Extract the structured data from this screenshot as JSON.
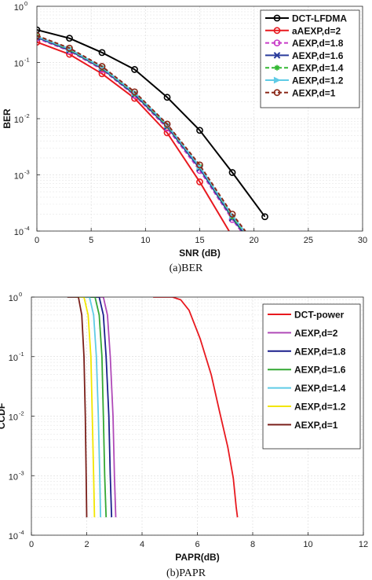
{
  "chart_data": [
    {
      "type": "line",
      "caption": "(a)BER",
      "xlabel": "SNR (dB)",
      "ylabel": "BER",
      "xlim": [
        0,
        30
      ],
      "ylim": [
        0.0001,
        1
      ],
      "yscale": "log",
      "grid": true,
      "legend_position": "top-right",
      "x_ticks": [
        "0",
        "5",
        "10",
        "15",
        "20",
        "25",
        "30"
      ],
      "y_ticks": [
        {
          "base": "10",
          "exp": "0"
        },
        {
          "base": "10",
          "exp": "-1"
        },
        {
          "base": "10",
          "exp": "-2"
        },
        {
          "base": "10",
          "exp": "-3"
        },
        {
          "base": "10",
          "exp": "-4"
        }
      ],
      "series": [
        {
          "name": "DCT-LFDMA",
          "color": "#000000",
          "marker": "circle",
          "dash": "solid",
          "x": [
            0,
            3,
            6,
            9,
            12,
            15,
            18,
            21
          ],
          "y": [
            0.38,
            0.27,
            0.15,
            0.075,
            0.024,
            0.0062,
            0.0011,
            0.00018
          ]
        },
        {
          "name": "aAEXP,d=2",
          "color": "#e8191f",
          "marker": "circle",
          "dash": "solid",
          "x": [
            0,
            3,
            6,
            9,
            12,
            15,
            17.7
          ],
          "y": [
            0.23,
            0.14,
            0.063,
            0.023,
            0.0056,
            0.00075,
            0.0001
          ]
        },
        {
          "name": "AEXP,d=1.8",
          "color": "#c83cc8",
          "marker": "circle",
          "dash": "dashed",
          "x": [
            0,
            3,
            6,
            9,
            12,
            15,
            18,
            18.8
          ],
          "y": [
            0.27,
            0.16,
            0.075,
            0.026,
            0.0068,
            0.0012,
            0.00016,
            0.0001
          ]
        },
        {
          "name": "AEXP,d=1.6",
          "color": "#2a3c9c",
          "marker": "x",
          "dash": "solid",
          "x": [
            0,
            3,
            6,
            9,
            12,
            15,
            18,
            18.9
          ],
          "y": [
            0.28,
            0.165,
            0.078,
            0.027,
            0.0072,
            0.0013,
            0.00017,
            0.0001
          ]
        },
        {
          "name": "AEXP,d=1.4",
          "color": "#33b833",
          "marker": "star",
          "dash": "dashed",
          "x": [
            0,
            3,
            6,
            9,
            12,
            15,
            18,
            19
          ],
          "y": [
            0.29,
            0.17,
            0.08,
            0.028,
            0.0075,
            0.0014,
            0.00018,
            0.0001
          ]
        },
        {
          "name": "AEXP,d=1.2",
          "color": "#5fcbe6",
          "marker": "triangle-right",
          "dash": "solid",
          "x": [
            0,
            3,
            6,
            9,
            12,
            15,
            18,
            19.1
          ],
          "y": [
            0.29,
            0.175,
            0.082,
            0.029,
            0.0078,
            0.0014,
            0.00019,
            0.0001
          ]
        },
        {
          "name": "AEXP,d=1",
          "color": "#8b2a1a",
          "marker": "circle",
          "dash": "dashed",
          "x": [
            0,
            3,
            6,
            9,
            12,
            15,
            18,
            19.2
          ],
          "y": [
            0.3,
            0.18,
            0.085,
            0.03,
            0.008,
            0.0015,
            0.0002,
            0.0001
          ]
        }
      ]
    },
    {
      "type": "line",
      "caption": "(b)PAPR",
      "xlabel": "PAPR(dB)",
      "ylabel": "CCDF",
      "xlim": [
        0,
        12
      ],
      "ylim": [
        0.0001,
        1
      ],
      "yscale": "log",
      "grid": true,
      "legend_position": "top-right",
      "x_ticks": [
        "0",
        "2",
        "4",
        "6",
        "8",
        "10",
        "12"
      ],
      "y_ticks": [
        {
          "base": "10",
          "exp": "0"
        },
        {
          "base": "10",
          "exp": "-1"
        },
        {
          "base": "10",
          "exp": "-2"
        },
        {
          "base": "10",
          "exp": "-3"
        },
        {
          "base": "10",
          "exp": "-4"
        }
      ],
      "series": [
        {
          "name": "DCT-power",
          "color": "#e8191f",
          "x": [
            4.4,
            5.1,
            5.4,
            5.7,
            6.1,
            6.5,
            6.8,
            7.1,
            7.3,
            7.4,
            7.45
          ],
          "y": [
            1,
            1,
            0.9,
            0.6,
            0.2,
            0.05,
            0.012,
            0.003,
            0.0009,
            0.0003,
            0.0002
          ]
        },
        {
          "name": "AEXP,d=2",
          "color": "#b04ab8",
          "x": [
            2.2,
            2.6,
            2.75,
            2.85,
            2.95,
            3.0,
            3.05
          ],
          "y": [
            1,
            1,
            0.5,
            0.1,
            0.01,
            0.001,
            0.0002
          ]
        },
        {
          "name": "AEXP,d=1.8",
          "color": "#1a1f8c",
          "x": [
            2.0,
            2.45,
            2.6,
            2.7,
            2.8,
            2.85,
            2.9
          ],
          "y": [
            1,
            1,
            0.5,
            0.1,
            0.01,
            0.001,
            0.0002
          ]
        },
        {
          "name": "AEXP,d=1.6",
          "color": "#33a833",
          "x": [
            1.85,
            2.3,
            2.45,
            2.55,
            2.6,
            2.65,
            2.7
          ],
          "y": [
            1,
            1,
            0.5,
            0.1,
            0.01,
            0.001,
            0.0002
          ]
        },
        {
          "name": "AEXP,d=1.4",
          "color": "#5fcbe6",
          "x": [
            1.75,
            2.1,
            2.25,
            2.35,
            2.42,
            2.47,
            2.5
          ],
          "y": [
            1,
            1,
            0.5,
            0.1,
            0.01,
            0.001,
            0.0002
          ]
        },
        {
          "name": "AEXP,d=1.2",
          "color": "#f2e600",
          "x": [
            1.6,
            1.9,
            2.05,
            2.15,
            2.2,
            2.25,
            2.28
          ],
          "y": [
            1,
            1,
            0.5,
            0.1,
            0.01,
            0.001,
            0.0002
          ]
        },
        {
          "name": "AEXP,d=1",
          "color": "#7a1f1a",
          "x": [
            1.3,
            1.7,
            1.82,
            1.9,
            1.95,
            1.98,
            2.0
          ],
          "y": [
            1,
            1,
            0.5,
            0.1,
            0.01,
            0.001,
            0.0002
          ]
        }
      ]
    }
  ]
}
